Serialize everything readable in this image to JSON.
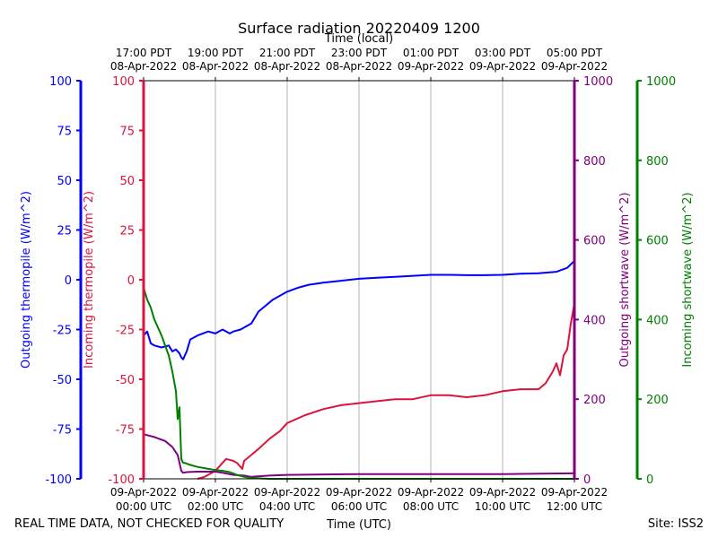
{
  "chart_data": {
    "type": "line",
    "title": "Surface radiation 20220409 1200",
    "top_xlabel": "Time (local)",
    "bottom_xlabel": "Time (UTC)",
    "footer_left": "REAL TIME DATA, NOT CHECKED FOR QUALITY",
    "footer_right": "Site: ISS2",
    "x_range_hours": [
      0,
      12
    ],
    "bottom_ticks": [
      {
        "hour": 0,
        "line1": "09-Apr-2022",
        "line2": "00:00 UTC"
      },
      {
        "hour": 2,
        "line1": "09-Apr-2022",
        "line2": "02:00 UTC"
      },
      {
        "hour": 4,
        "line1": "09-Apr-2022",
        "line2": "04:00 UTC"
      },
      {
        "hour": 6,
        "line1": "09-Apr-2022",
        "line2": "06:00 UTC"
      },
      {
        "hour": 8,
        "line1": "09-Apr-2022",
        "line2": "08:00 UTC"
      },
      {
        "hour": 10,
        "line1": "09-Apr-2022",
        "line2": "10:00 UTC"
      },
      {
        "hour": 12,
        "line1": "09-Apr-2022",
        "line2": "12:00 UTC"
      }
    ],
    "top_ticks": [
      {
        "hour": 0,
        "line1": "17:00 PDT",
        "line2": "08-Apr-2022"
      },
      {
        "hour": 2,
        "line1": "19:00 PDT",
        "line2": "08-Apr-2022"
      },
      {
        "hour": 4,
        "line1": "21:00 PDT",
        "line2": "08-Apr-2022"
      },
      {
        "hour": 6,
        "line1": "23:00 PDT",
        "line2": "08-Apr-2022"
      },
      {
        "hour": 8,
        "line1": "01:00 PDT",
        "line2": "09-Apr-2022"
      },
      {
        "hour": 10,
        "line1": "03:00 PDT",
        "line2": "09-Apr-2022"
      },
      {
        "hour": 12,
        "line1": "05:00 PDT",
        "line2": "09-Apr-2022"
      }
    ],
    "axes": [
      {
        "id": "outgoing_thermopile",
        "label": "Outgoing thermopile (W/m^2)",
        "color": "#0000ff",
        "range": [
          -100,
          100
        ],
        "ticks": [
          -100,
          -75,
          -50,
          -25,
          0,
          25,
          50,
          75,
          100
        ],
        "side": "left-outer"
      },
      {
        "id": "incoming_thermopile",
        "label": "Incoming thermopile (W/m^2)",
        "color": "#dc143c",
        "range": [
          -100,
          100
        ],
        "ticks": [
          -100,
          -75,
          -50,
          -25,
          0,
          25,
          50,
          75,
          100
        ],
        "side": "left-inner"
      },
      {
        "id": "outgoing_shortwave",
        "label": "Outgoing shortwave (W/m^2)",
        "color": "#800080",
        "range": [
          0,
          1000
        ],
        "ticks": [
          0,
          200,
          400,
          600,
          800,
          1000
        ],
        "side": "right-inner"
      },
      {
        "id": "incoming_shortwave",
        "label": "Incoming shortwave (W/m^2)",
        "color": "#008000",
        "range": [
          0,
          1000
        ],
        "ticks": [
          0,
          200,
          400,
          600,
          800,
          1000
        ],
        "side": "right-outer"
      }
    ],
    "series": [
      {
        "name": "Outgoing thermopile",
        "axis": "outgoing_thermopile",
        "color": "#0000ff",
        "x": [
          0,
          0.1,
          0.2,
          0.3,
          0.5,
          0.7,
          0.8,
          0.9,
          1.0,
          1.05,
          1.1,
          1.2,
          1.3,
          1.5,
          1.8,
          2.0,
          2.2,
          2.4,
          2.5,
          2.7,
          2.8,
          3.0,
          3.2,
          3.4,
          3.6,
          3.8,
          4.0,
          4.3,
          4.6,
          5.0,
          5.5,
          6.0,
          6.5,
          7.0,
          7.5,
          8.0,
          8.5,
          9.0,
          9.5,
          10.0,
          10.5,
          11.0,
          11.5,
          11.8,
          12.0
        ],
        "y": [
          -28,
          -26,
          -32,
          -33,
          -34,
          -33,
          -36,
          -35,
          -37,
          -39,
          -40,
          -36,
          -30,
          -28,
          -26,
          -27,
          -25,
          -27,
          -26,
          -25,
          -24,
          -22,
          -16,
          -13,
          -10,
          -8,
          -6,
          -4,
          -2.5,
          -1.5,
          -0.5,
          0.5,
          1,
          1.5,
          2,
          2.5,
          2.5,
          2.3,
          2.3,
          2.5,
          3,
          3.3,
          4,
          6,
          9.5
        ]
      },
      {
        "name": "Incoming thermopile",
        "axis": "incoming_thermopile",
        "color": "#dc143c",
        "x": [
          1.5,
          1.7,
          2.0,
          2.2,
          2.3,
          2.5,
          2.6,
          2.75,
          2.8,
          3.0,
          3.2,
          3.5,
          3.8,
          4.0,
          4.5,
          5.0,
          5.5,
          6.0,
          6.5,
          7.0,
          7.5,
          8.0,
          8.5,
          9.0,
          9.5,
          10.0,
          10.5,
          11.0,
          11.2,
          11.4,
          11.5,
          11.6,
          11.7,
          11.8,
          11.9,
          12.0
        ],
        "y": [
          -100,
          -99,
          -96,
          -92,
          -90,
          -91,
          -92,
          -95,
          -91,
          -88,
          -85,
          -80,
          -76,
          -72,
          -68,
          -65,
          -63,
          -62,
          -61,
          -60,
          -60,
          -58,
          -58,
          -59,
          -58,
          -56,
          -55,
          -55,
          -52,
          -46,
          -42,
          -48,
          -38,
          -35,
          -22,
          -12
        ]
      },
      {
        "name": "Outgoing shortwave",
        "axis": "outgoing_shortwave",
        "color": "#800080",
        "x": [
          0,
          0.3,
          0.6,
          0.8,
          0.95,
          1.05,
          1.1,
          1.2,
          1.5,
          2.0,
          2.2,
          2.5,
          2.8,
          3.0,
          3.5,
          4.0,
          6.0,
          8.0,
          10.0,
          12.0
        ],
        "y": [
          112,
          105,
          95,
          80,
          60,
          20,
          15,
          17,
          18,
          18,
          15,
          10,
          8,
          5,
          8,
          10,
          12,
          12,
          12,
          14
        ]
      },
      {
        "name": "Incoming shortwave",
        "axis": "incoming_shortwave",
        "color": "#008000",
        "x": [
          0,
          0.1,
          0.2,
          0.3,
          0.5,
          0.7,
          0.8,
          0.9,
          0.95,
          1.0,
          1.05,
          1.1,
          1.15,
          1.2,
          1.3,
          1.5,
          1.8,
          2.0,
          2.2,
          2.4,
          2.6,
          2.8,
          3.0,
          3.5,
          4.0,
          6.0,
          8.0,
          10.0,
          12.0
        ],
        "y": [
          480,
          450,
          430,
          400,
          360,
          310,
          270,
          220,
          150,
          180,
          50,
          40,
          40,
          38,
          35,
          30,
          25,
          22,
          20,
          17,
          10,
          5,
          2,
          0,
          0,
          0,
          0,
          0,
          0
        ]
      }
    ]
  }
}
